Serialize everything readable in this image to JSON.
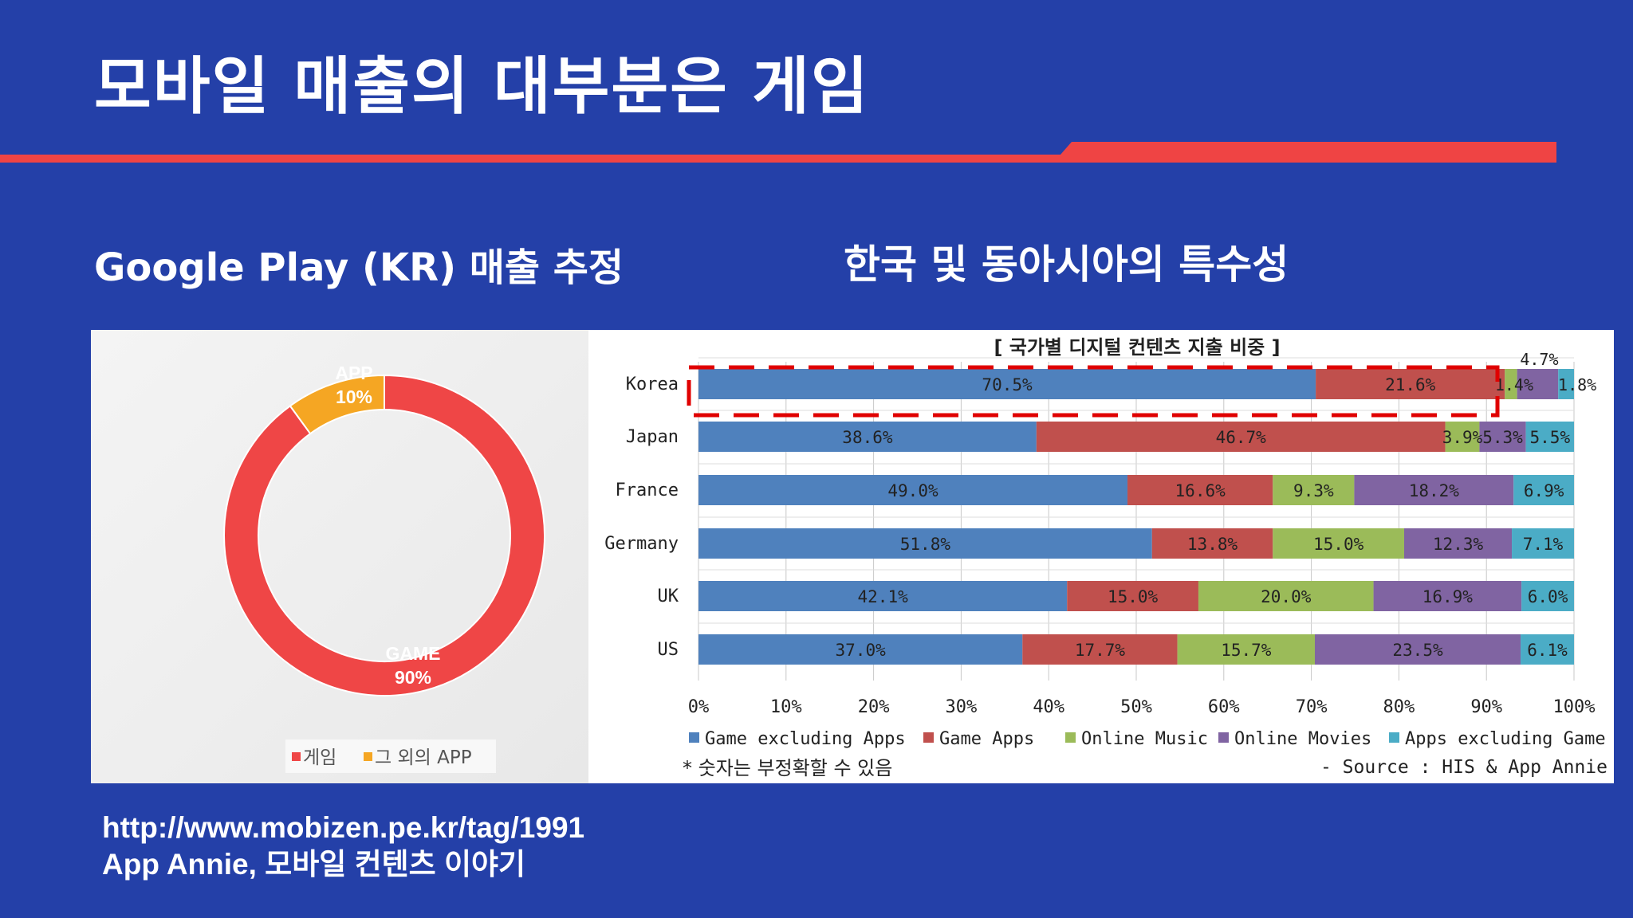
{
  "slide": {
    "title": "모바일 매출의 대부분은 게임",
    "left_heading": "Google Play (KR) 매출 추정",
    "right_heading": "한국 및 동아시아의 특수성",
    "source_line1": "http://www.mobizen.pe.kr/tag/1991",
    "source_line2": "App Annie, 모바일 컨텐츠 이야기"
  },
  "colors": {
    "background": "#2440a8",
    "accent_red": "#ef4444",
    "game": "#ef4646",
    "app": "#f5a623",
    "s1": "#4f81bd",
    "s2": "#c0504d",
    "s3": "#9bbb59",
    "s4": "#8064a2",
    "s5": "#4bacc6"
  },
  "chart_data": [
    {
      "type": "pie",
      "variant": "donut",
      "title": "Google Play (KR) 매출 추정",
      "slices": [
        {
          "label": "GAME",
          "value": 90,
          "pct_label": "90%",
          "legend": "게임"
        },
        {
          "label": "APP",
          "value": 10,
          "pct_label": "10%",
          "legend": "그 외의 APP"
        }
      ],
      "legend_position": "bottom"
    },
    {
      "type": "bar",
      "orientation": "horizontal",
      "stacked": true,
      "title": "[ 국가별 디지털 컨텐츠 지출 비중 ]",
      "categories": [
        "Korea",
        "Japan",
        "France",
        "Germany",
        "UK",
        "US"
      ],
      "series": [
        {
          "name": "Game excluding Apps",
          "values": [
            70.5,
            38.6,
            49.0,
            51.8,
            42.1,
            37.0
          ],
          "labels": [
            "70.5%",
            "38.6%",
            "49.0%",
            "51.8%",
            "42.1%",
            "37.0%"
          ]
        },
        {
          "name": "Game Apps",
          "values": [
            21.6,
            46.7,
            16.6,
            13.8,
            15.0,
            17.7
          ],
          "labels": [
            "21.6%",
            "46.7%",
            "16.6%",
            "13.8%",
            "15.0%",
            "17.7%"
          ]
        },
        {
          "name": "Online Music",
          "values": [
            1.4,
            3.9,
            9.3,
            15.0,
            20.0,
            15.7
          ],
          "labels": [
            "1.4%",
            "3.9%",
            "9.3%",
            "15.0%",
            "20.0%",
            "15.7%"
          ]
        },
        {
          "name": "Online Movies",
          "values": [
            4.7,
            5.3,
            18.2,
            12.3,
            16.9,
            23.5
          ],
          "labels": [
            "4.7%",
            "5.3%",
            "18.2%",
            "12.3%",
            "16.9%",
            "23.5%"
          ]
        },
        {
          "name": "Apps excluding Game",
          "values": [
            1.8,
            5.5,
            6.9,
            7.1,
            6.0,
            6.1
          ],
          "labels": [
            "1.8%",
            "5.5%",
            "6.9%",
            "7.1%",
            "6.0%",
            "6.1%"
          ]
        }
      ],
      "xlim": [
        0,
        100
      ],
      "xticks": [
        "0%",
        "10%",
        "20%",
        "30%",
        "40%",
        "50%",
        "60%",
        "70%",
        "80%",
        "90%",
        "100%"
      ],
      "grid": true,
      "legend_position": "bottom",
      "highlight": "Korea",
      "note": "* 숫자는 부정확할 수 있음",
      "source": "- Source : HIS & App Annie"
    }
  ]
}
